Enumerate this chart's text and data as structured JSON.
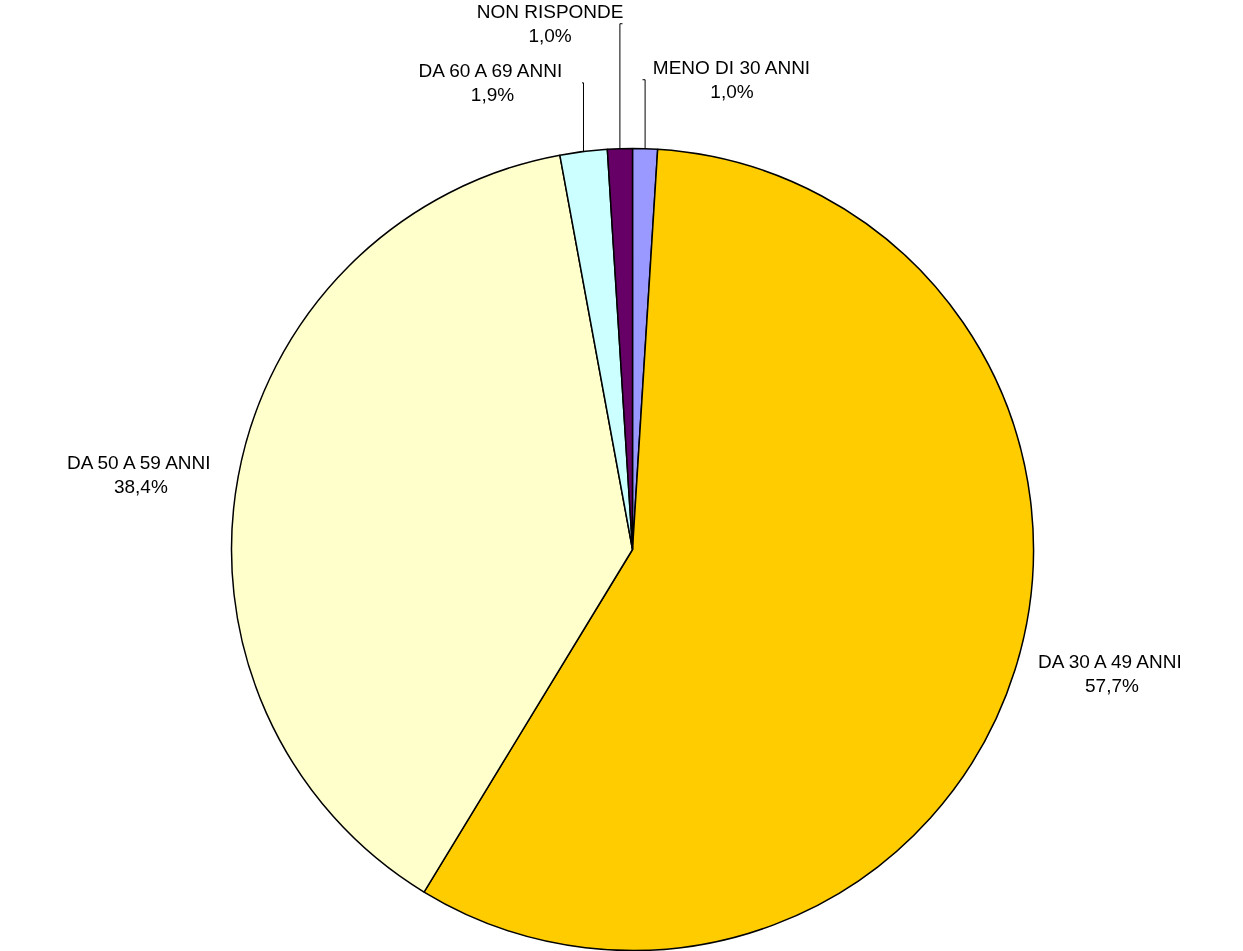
{
  "chart_data": {
    "type": "pie",
    "categories": [
      "MENO DI 30 ANNI",
      "DA 30 A 49 ANNI",
      "DA 50 A 59 ANNI",
      "DA 60 A 69 ANNI",
      "NON RISPONDE"
    ],
    "values": [
      1.0,
      57.7,
      38.4,
      1.9,
      1.0
    ],
    "colors": [
      "#9999ff",
      "#ffcc00",
      "#ffffcc",
      "#ccffff",
      "#660066"
    ],
    "value_labels": [
      "1,0%",
      "57,7%",
      "38,4%",
      "1,9%",
      "1,0%"
    ]
  }
}
